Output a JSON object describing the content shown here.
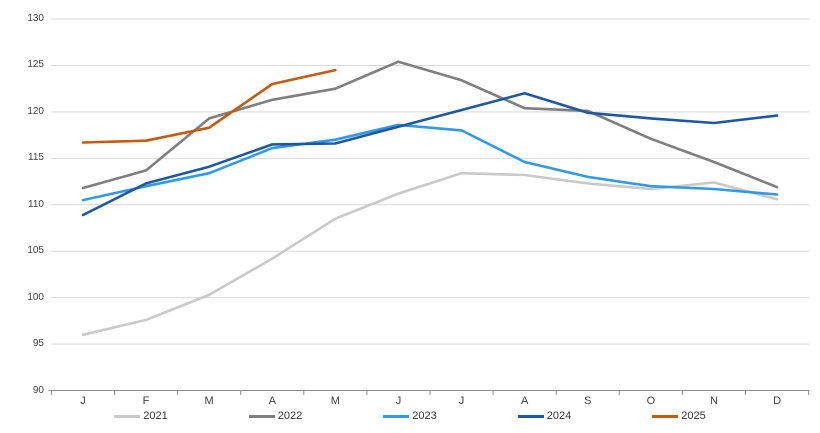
{
  "chart_data": {
    "type": "line",
    "title": "",
    "x_categories": [
      "J",
      "F",
      "M",
      "A",
      "M",
      "J",
      "J",
      "A",
      "S",
      "O",
      "N",
      "D"
    ],
    "y_ticks": [
      130,
      125,
      120,
      115,
      110,
      105,
      100,
      95,
      90
    ],
    "ylim": [
      90,
      130
    ],
    "grid": "horizontal",
    "gridline_color": "#d9d9d9",
    "axis_line_color": "#8c8c8c",
    "legend_position": "bottom",
    "series": [
      {
        "name": "2021",
        "color": "#c9c9c9",
        "values": [
          96.0,
          97.6,
          100.3,
          104.2,
          108.5,
          111.2,
          113.4,
          113.2,
          112.3,
          111.7,
          112.4,
          110.6
        ]
      },
      {
        "name": "2022",
        "color": "#7f7f7f",
        "values": [
          111.8,
          113.7,
          119.3,
          121.3,
          122.5,
          125.4,
          123.4,
          120.4,
          120.1,
          117.1,
          114.6,
          111.9
        ]
      },
      {
        "name": "2023",
        "color": "#3399e6",
        "values": [
          110.5,
          112.0,
          113.4,
          116.1,
          117.0,
          118.6,
          118.0,
          114.6,
          113.0,
          112.0,
          111.7,
          111.1
        ]
      },
      {
        "name": "2024",
        "color": "#20589f",
        "values": [
          108.9,
          112.3,
          114.1,
          116.5,
          116.6,
          118.4,
          120.2,
          122.0,
          119.9,
          119.3,
          118.8,
          119.6
        ]
      },
      {
        "name": "2025",
        "color": "#c55a11",
        "values": [
          116.7,
          116.9,
          118.3,
          123.0,
          124.5
        ]
      }
    ]
  }
}
